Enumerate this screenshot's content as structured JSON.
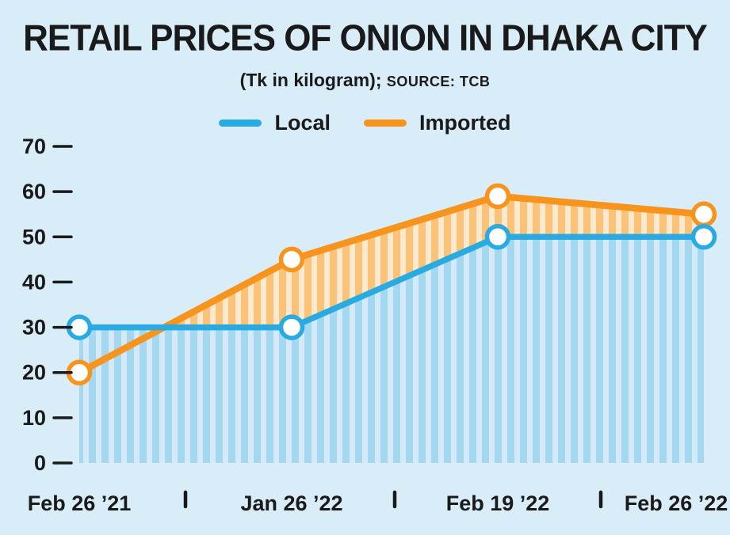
{
  "title": "RETAIL PRICES OF ONION IN DHAKA CITY",
  "subtitle": "(Tk in kilogram);",
  "source": "SOURCE: TCB",
  "chart_data": {
    "type": "area",
    "title": "RETAIL PRICES OF ONION IN DHAKA CITY",
    "subtitle": "(Tk in kilogram); SOURCE: TCB",
    "categories": [
      "Feb 26 ’21",
      "Jan 26 ’22",
      "Feb 19 ’22",
      "Feb 26 ’22"
    ],
    "series": [
      {
        "name": "Local",
        "color": "#29abe2",
        "values": [
          30,
          30,
          50,
          50
        ]
      },
      {
        "name": "Imported",
        "color": "#f7941e",
        "values": [
          20,
          45,
          59,
          55
        ]
      }
    ],
    "ylim": [
      0,
      70
    ],
    "yticks": [
      0,
      10,
      20,
      30,
      40,
      50,
      60,
      70
    ],
    "xlabel": "",
    "ylabel": "",
    "legend_position": "top",
    "grid": false,
    "background_color": "#d9edf8",
    "fill_style": "vertical-stripes"
  }
}
